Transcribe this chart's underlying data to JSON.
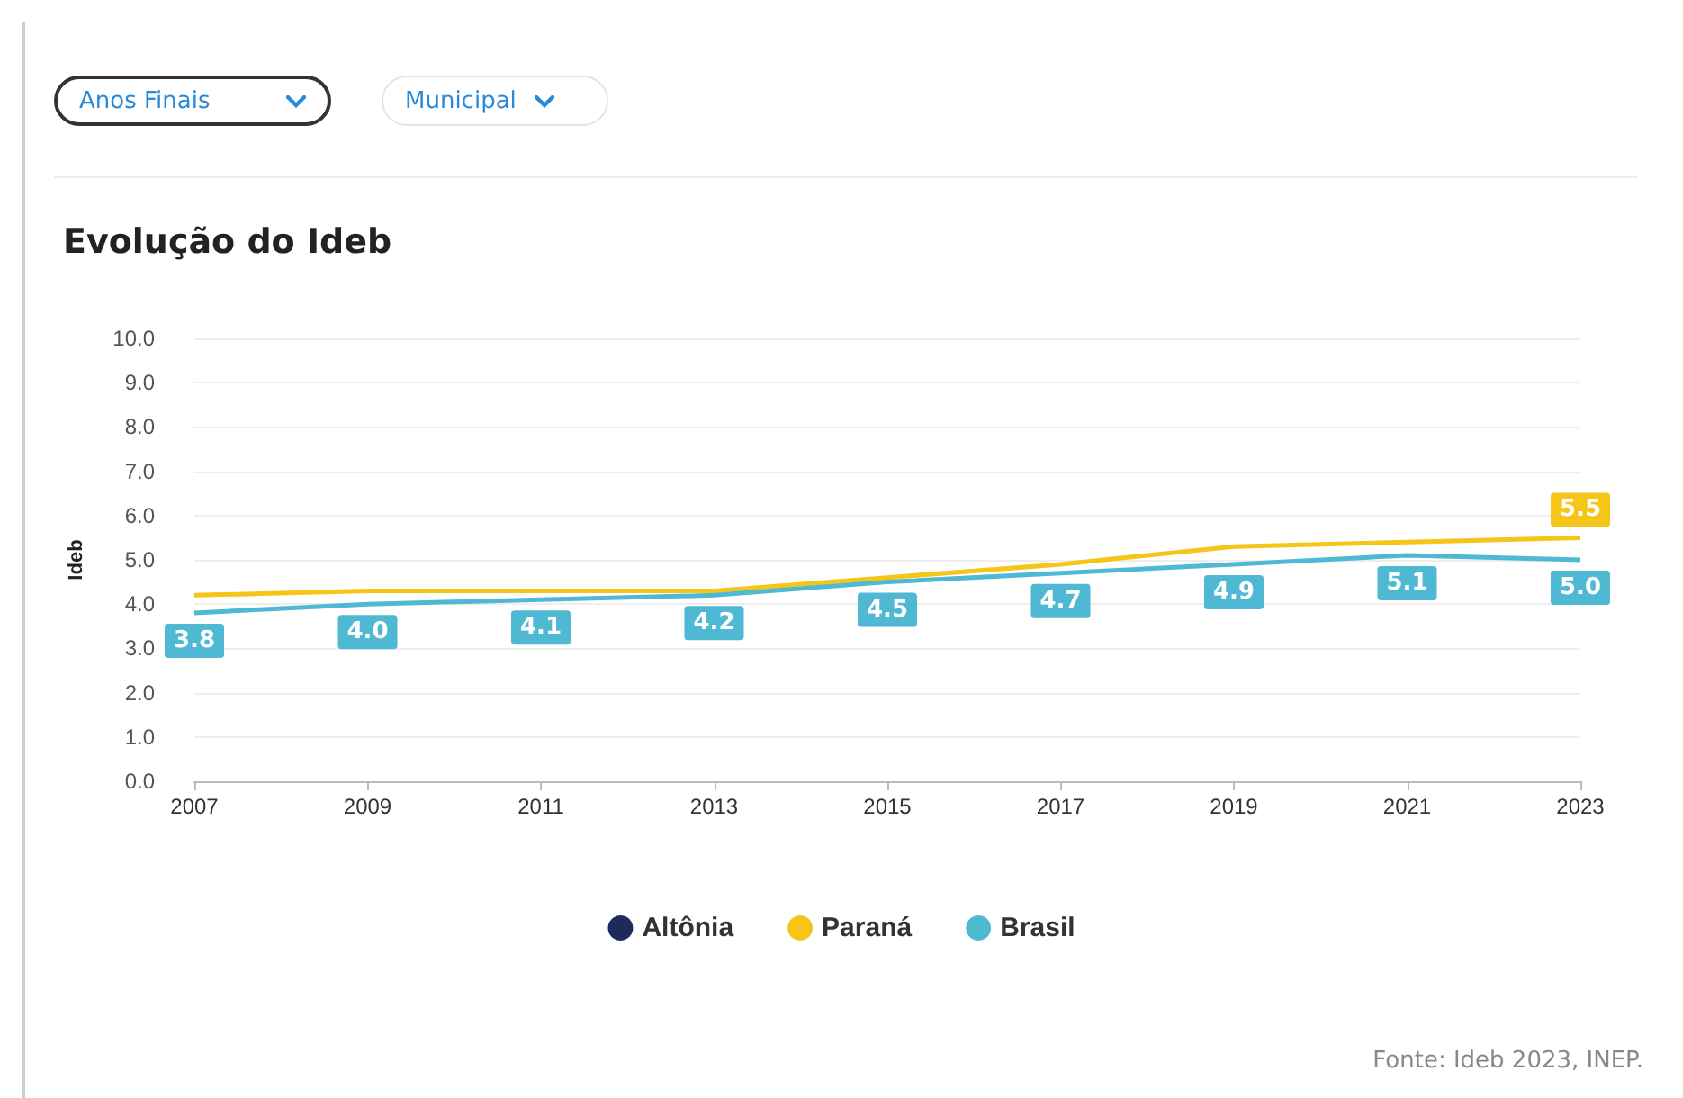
{
  "chart_data": {
    "type": "line",
    "title": "Evolução do Ideb",
    "ylabel": "Ideb",
    "categories": [
      "2007",
      "2009",
      "2011",
      "2013",
      "2015",
      "2017",
      "2019",
      "2021",
      "2023"
    ],
    "series": [
      {
        "name": "Altônia",
        "color": "#1e2a5e",
        "values": [
          null,
          null,
          null,
          null,
          null,
          null,
          null,
          null,
          null
        ]
      },
      {
        "name": "Paraná",
        "color": "#f5c518",
        "values": [
          4.2,
          4.3,
          4.3,
          4.3,
          4.6,
          4.9,
          5.3,
          5.4,
          5.5
        ],
        "value_labels": [
          null,
          null,
          null,
          null,
          null,
          null,
          null,
          null,
          "5.5"
        ]
      },
      {
        "name": "Brasil",
        "color": "#4fb9d4",
        "values": [
          3.8,
          4.0,
          4.1,
          4.2,
          4.5,
          4.7,
          4.9,
          5.1,
          5.0
        ],
        "value_labels": [
          "3.8",
          "4.0",
          "4.1",
          "4.2",
          "4.5",
          "4.7",
          "4.9",
          "5.1",
          "5.0"
        ]
      }
    ],
    "ylim": [
      0,
      10
    ],
    "yticks": [
      {
        "value": 0,
        "label": "0.0"
      },
      {
        "value": 1,
        "label": "1.0"
      },
      {
        "value": 2,
        "label": "2.0"
      },
      {
        "value": 3,
        "label": "3.0"
      },
      {
        "value": 4,
        "label": "4.0"
      },
      {
        "value": 5,
        "label": "5.0"
      },
      {
        "value": 6,
        "label": "6.0"
      },
      {
        "value": 7,
        "label": "7.0"
      },
      {
        "value": 8,
        "label": "8.0"
      },
      {
        "value": 9,
        "label": "9.0"
      },
      {
        "value": 10,
        "label": "10.0"
      }
    ],
    "grid": "y",
    "legend": "bottom",
    "marker": "none",
    "line_style": "solid",
    "annotations": [
      "Anos Finais",
      "Municipal",
      "Fonte: Ideb 2023, INEP."
    ]
  }
}
